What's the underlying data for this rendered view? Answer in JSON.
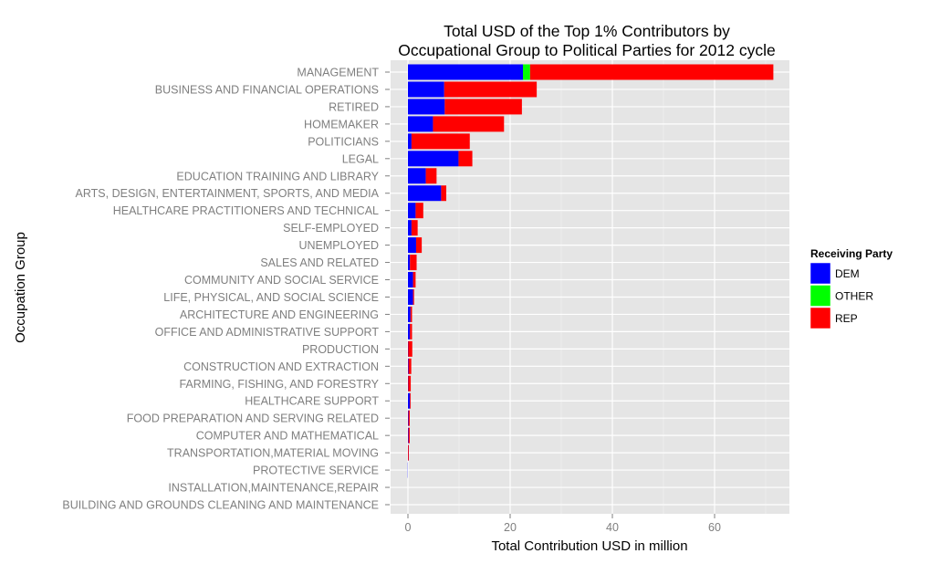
{
  "chart_data": {
    "type": "bar",
    "orientation": "horizontal",
    "stacked": true,
    "title": "Total USD of the Top 1% Contributors by\nOccupational Group to Political Parties for 2012 cycle",
    "title_lines": [
      "Total USD of the Top 1% Contributors by",
      "Occupational Group to Political Parties for 2012 cycle"
    ],
    "xlabel": "Total Contribution USD in million",
    "ylabel": "Occupation Group",
    "xlim": [
      -3.5,
      75
    ],
    "xticks": [
      0,
      20,
      40,
      60
    ],
    "grid": true,
    "legend": {
      "title": "Receiving Party",
      "placement": "right",
      "entries": [
        "DEM",
        "OTHER",
        "REP"
      ]
    },
    "colors": {
      "DEM": "#0000ff",
      "OTHER": "#00ff00",
      "REP": "#ff0000"
    },
    "categories": [
      "MANAGEMENT",
      "BUSINESS AND FINANCIAL OPERATIONS",
      "RETIRED",
      "HOMEMAKER",
      "POLITICIANS",
      "LEGAL",
      "EDUCATION TRAINING AND LIBRARY",
      "ARTS, DESIGN, ENTERTAINMENT, SPORTS, AND MEDIA",
      "HEALTHCARE PRACTITIONERS AND TECHNICAL",
      "SELF-EMPLOYED",
      "UNEMPLOYED",
      "SALES AND RELATED",
      "COMMUNITY AND SOCIAL SERVICE",
      "LIFE, PHYSICAL, AND SOCIAL SCIENCE",
      "ARCHITECTURE AND ENGINEERING",
      "OFFICE AND ADMINISTRATIVE SUPPORT",
      "PRODUCTION",
      "CONSTRUCTION AND EXTRACTION",
      "FARMING, FISHING, AND FORESTRY",
      "HEALTHCARE SUPPORT",
      "FOOD PREPARATION AND SERVING RELATED",
      "COMPUTER AND MATHEMATICAL",
      "TRANSPORTATION,MATERIAL MOVING",
      "PROTECTIVE SERVICE",
      "INSTALLATION,MAINTENANCE,REPAIR",
      "BUILDING AND GROUNDS CLEANING AND MAINTENANCE"
    ],
    "series": [
      {
        "name": "DEM",
        "values": [
          22.5,
          7.1,
          7.2,
          4.9,
          0.7,
          9.9,
          3.5,
          6.5,
          1.5,
          0.7,
          1.6,
          0.4,
          1.0,
          1.0,
          0.5,
          0.4,
          0.05,
          0.1,
          0.05,
          0.4,
          0.1,
          0.1,
          0.02,
          -0.15,
          0.0,
          0.0
        ]
      },
      {
        "name": "OTHER",
        "values": [
          1.4,
          0,
          0,
          0,
          0,
          0,
          0,
          0,
          0,
          0,
          0,
          0,
          0,
          0,
          0,
          0,
          0,
          0,
          0,
          0,
          0,
          0,
          0,
          0,
          0,
          0
        ]
      },
      {
        "name": "REP",
        "values": [
          47.6,
          18.1,
          15.1,
          13.9,
          11.4,
          2.7,
          2.1,
          1.0,
          1.5,
          1.2,
          1.1,
          1.3,
          0.5,
          0.2,
          0.3,
          0.4,
          0.8,
          0.55,
          0.5,
          0.1,
          0.25,
          0.25,
          0.15,
          0.0,
          0.0,
          0.0
        ]
      }
    ]
  }
}
